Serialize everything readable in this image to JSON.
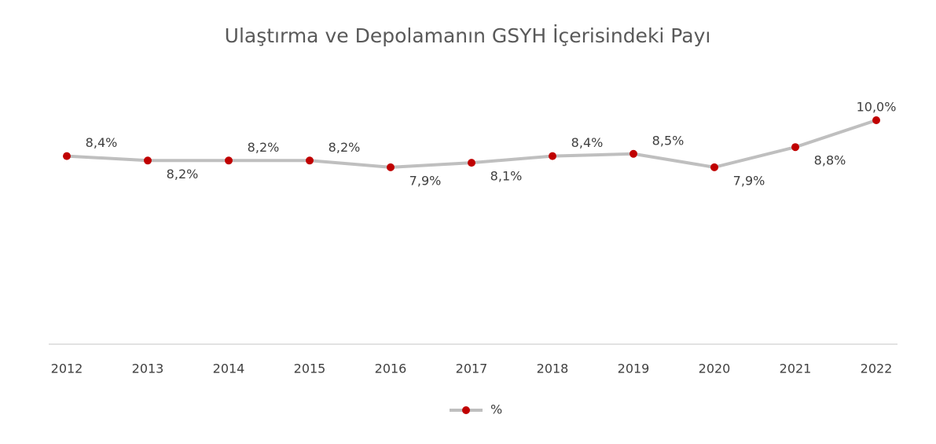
{
  "chart_data": {
    "type": "line",
    "title": "Ulaştırma ve Depolamanın GSYH İçerisindeki Payı",
    "categories": [
      "2012",
      "2013",
      "2014",
      "2015",
      "2016",
      "2017",
      "2018",
      "2019",
      "2020",
      "2021",
      "2022"
    ],
    "series": [
      {
        "name": "%",
        "color": "#bfbfbf",
        "marker_color": "#c00000",
        "values": [
          8.4,
          8.2,
          8.2,
          8.2,
          7.9,
          8.1,
          8.4,
          8.5,
          7.9,
          8.8,
          10.0
        ],
        "value_labels": [
          "8,4%",
          "8,2%",
          "8,2%",
          "8,2%",
          "7,9%",
          "8,1%",
          "8,4%",
          "8,5%",
          "7,9%",
          "8,8%",
          "10,0%"
        ]
      }
    ],
    "ylim": [
      0,
      12
    ],
    "legend": "bottom"
  }
}
